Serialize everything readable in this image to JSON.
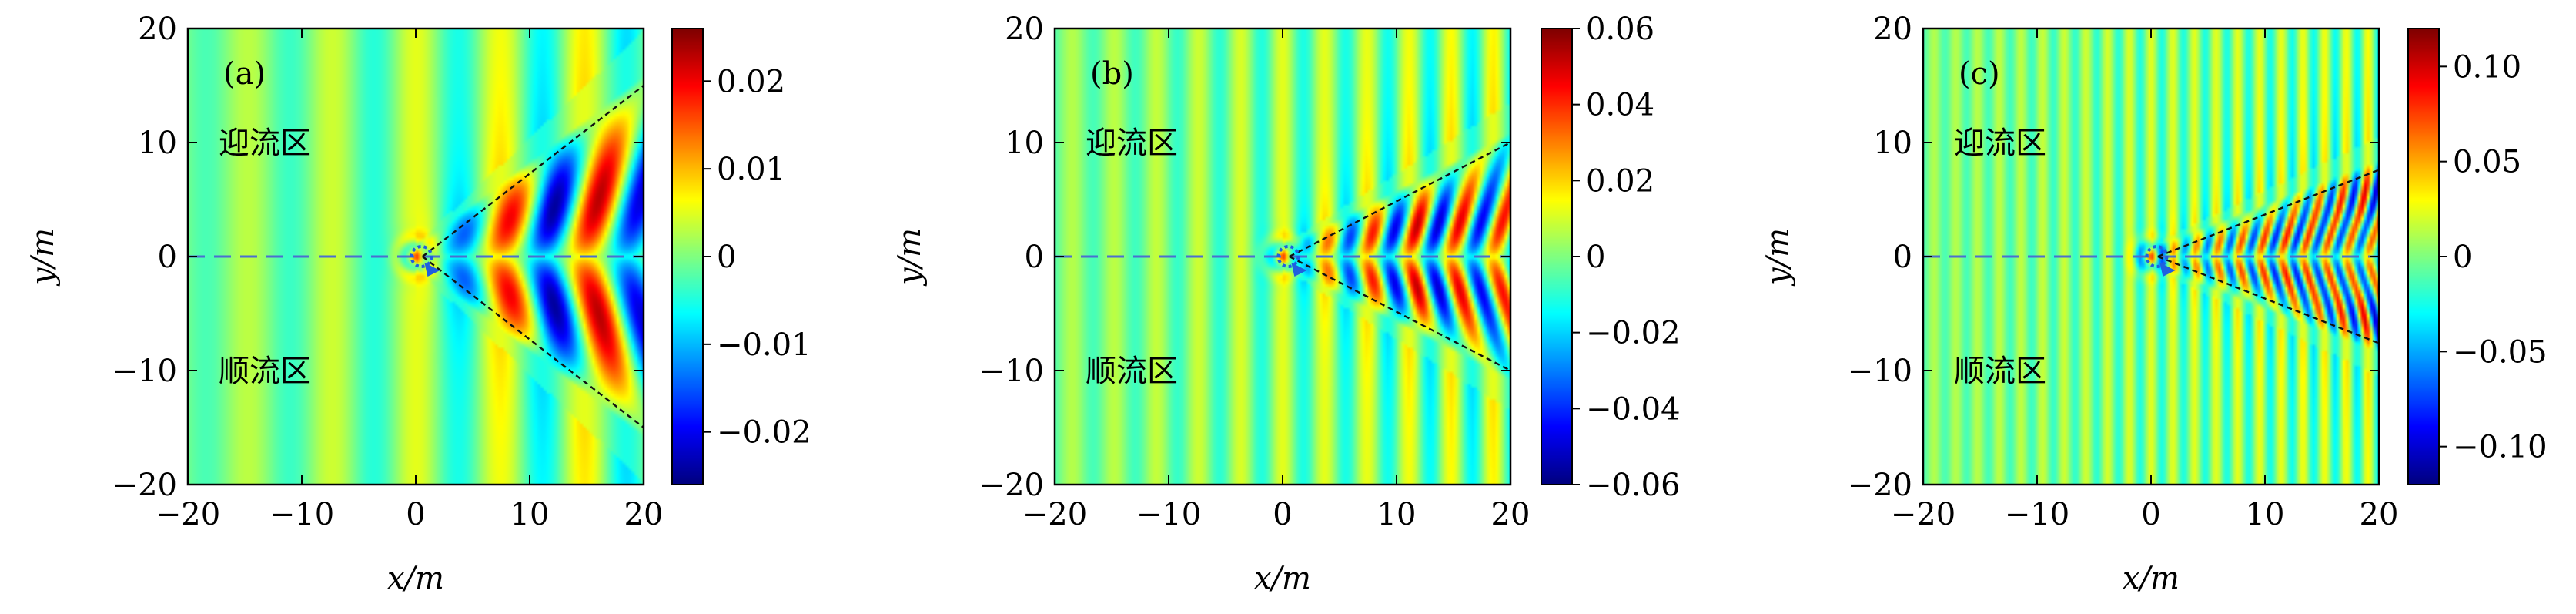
{
  "chart_data": [
    {
      "type": "heatmap",
      "panel_label": "(a)",
      "region_upper": "迎流区",
      "region_lower": "顺流区",
      "xlabel": "x/m",
      "ylabel": "y/m",
      "xlim": [
        -20,
        20
      ],
      "ylim": [
        -20,
        20
      ],
      "xticks": [
        "−20",
        "−10",
        "0",
        "10",
        "20"
      ],
      "yticks": [
        "−20",
        "−10",
        "0",
        "10",
        "20"
      ],
      "colorbar": {
        "min": -0.026,
        "max": 0.026,
        "ticks": [
          0.02,
          0.01,
          0,
          -0.01,
          -0.02
        ],
        "tick_labels": [
          "0.02",
          "0.01",
          "0",
          "−0.01",
          "−0.02"
        ]
      },
      "wedge_slope": 0.75,
      "wavenumber": 0.85,
      "colormap": "jet"
    },
    {
      "type": "heatmap",
      "panel_label": "(b)",
      "region_upper": "迎流区",
      "region_lower": "顺流区",
      "xlabel": "x/m",
      "ylabel": "y/m",
      "xlim": [
        -20,
        20
      ],
      "ylim": [
        -20,
        20
      ],
      "xticks": [
        "−20",
        "−10",
        "0",
        "10",
        "20"
      ],
      "yticks": [
        "−20",
        "−10",
        "0",
        "10",
        "20"
      ],
      "colorbar": {
        "min": -0.06,
        "max": 0.06,
        "ticks": [
          0.06,
          0.04,
          0.02,
          0,
          -0.02,
          -0.04,
          -0.06
        ],
        "tick_labels": [
          "0.06",
          "0.04",
          "0.02",
          "0",
          "−0.02",
          "−0.04",
          "−0.06"
        ]
      },
      "wedge_slope": 0.5,
      "wavenumber": 1.7,
      "colormap": "jet"
    },
    {
      "type": "heatmap",
      "panel_label": "(c)",
      "region_upper": "迎流区",
      "region_lower": "顺流区",
      "xlabel": "x/m",
      "ylabel": "y/m",
      "xlim": [
        -20,
        20
      ],
      "ylim": [
        -20,
        20
      ],
      "xticks": [
        "−20",
        "−10",
        "0",
        "10",
        "20"
      ],
      "yticks": [
        "−20",
        "−10",
        "0",
        "10",
        "20"
      ],
      "colorbar": {
        "min": -0.12,
        "max": 0.12,
        "ticks": [
          0.1,
          0.05,
          0,
          -0.05,
          -0.1
        ],
        "tick_labels": [
          "0.10",
          "0.05",
          "0",
          "−0.05",
          "−0.10"
        ]
      },
      "wedge_slope": 0.38,
      "wavenumber": 3.3,
      "colormap": "jet"
    }
  ]
}
